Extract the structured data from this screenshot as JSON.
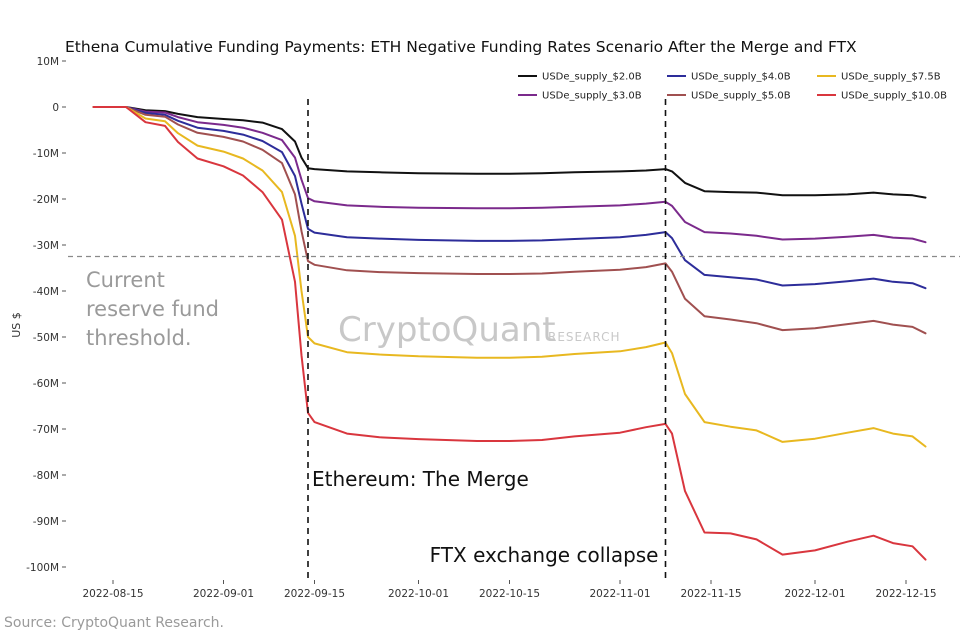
{
  "chart_data": {
    "type": "line",
    "title": "Ethena Cumulative Funding Payments: ETH Negative Funding Rates Scenario After the Merge and FTX",
    "ylabel": "US $",
    "xlabel": "",
    "ylim": [
      -100,
      10
    ],
    "y_ticks": [
      {
        "value": 10,
        "label": "10M"
      },
      {
        "value": 0,
        "label": "0"
      },
      {
        "value": -10,
        "label": "-10M"
      },
      {
        "value": -20,
        "label": "-20M"
      },
      {
        "value": -30,
        "label": "-30M"
      },
      {
        "value": -40,
        "label": "-40M"
      },
      {
        "value": -50,
        "label": "-50M"
      },
      {
        "value": -60,
        "label": "-60M"
      },
      {
        "value": -70,
        "label": "-70M"
      },
      {
        "value": -80,
        "label": "-80M"
      },
      {
        "value": -90,
        "label": "-90M"
      },
      {
        "value": -100,
        "label": "-100M"
      }
    ],
    "x_ticks": [
      "2022-08-15",
      "2022-09-01",
      "2022-09-15",
      "2022-10-01",
      "2022-10-15",
      "2022-11-01",
      "2022-11-15",
      "2022-12-01",
      "2022-12-15"
    ],
    "x": [
      "2022-08-12",
      "2022-08-15",
      "2022-08-17",
      "2022-08-20",
      "2022-08-23",
      "2022-08-25",
      "2022-08-28",
      "2022-09-01",
      "2022-09-04",
      "2022-09-07",
      "2022-09-10",
      "2022-09-12",
      "2022-09-13",
      "2022-09-14",
      "2022-09-15",
      "2022-09-20",
      "2022-09-25",
      "2022-10-01",
      "2022-10-10",
      "2022-10-15",
      "2022-10-20",
      "2022-10-25",
      "2022-11-01",
      "2022-11-05",
      "2022-11-08",
      "2022-11-09",
      "2022-11-11",
      "2022-11-14",
      "2022-11-18",
      "2022-11-22",
      "2022-11-26",
      "2022-12-01",
      "2022-12-06",
      "2022-12-10",
      "2022-12-13",
      "2022-12-16",
      "2022-12-18"
    ],
    "series": [
      {
        "name": "USDe_supply_$2.0B",
        "color": "#111111",
        "values": [
          0,
          0,
          0,
          -0.7,
          -0.9,
          -1.5,
          -2.2,
          -2.6,
          -2.9,
          -3.4,
          -4.8,
          -7.5,
          -11,
          -13.3,
          -13.5,
          -14,
          -14.2,
          -14.4,
          -14.5,
          -14.5,
          -14.4,
          -14.2,
          -14,
          -13.8,
          -13.5,
          -14,
          -16.5,
          -18.3,
          -18.5,
          -18.6,
          -19.2,
          -19.2,
          -19,
          -18.6,
          -19,
          -19.2,
          -19.7
        ]
      },
      {
        "name": "USDe_supply_$3.0B",
        "color": "#7b2a8c",
        "values": [
          0,
          0,
          0,
          -1.0,
          -1.2,
          -2.2,
          -3.3,
          -3.9,
          -4.5,
          -5.6,
          -7.2,
          -11,
          -15.8,
          -19.8,
          -20.5,
          -21.4,
          -21.7,
          -21.9,
          -22.0,
          -22.0,
          -21.9,
          -21.7,
          -21.4,
          -21.0,
          -20.6,
          -21.5,
          -25,
          -27.2,
          -27.5,
          -28,
          -28.8,
          -28.6,
          -28.2,
          -27.8,
          -28.4,
          -28.6,
          -29.4
        ]
      },
      {
        "name": "USDe_supply_$4.0B",
        "color": "#2d2d9a",
        "values": [
          0,
          0,
          0,
          -1.3,
          -1.7,
          -3.0,
          -4.5,
          -5.2,
          -6.0,
          -7.4,
          -9.8,
          -15,
          -21,
          -26.5,
          -27.3,
          -28.3,
          -28.6,
          -28.9,
          -29.1,
          -29.1,
          -29.0,
          -28.7,
          -28.3,
          -27.8,
          -27.2,
          -28.5,
          -33.3,
          -36.5,
          -37,
          -37.5,
          -38.8,
          -38.5,
          -37.9,
          -37.3,
          -38,
          -38.3,
          -39.4
        ]
      },
      {
        "name": "USDe_supply_$5.0B",
        "color": "#a05050",
        "values": [
          0,
          0,
          0,
          -1.7,
          -2.1,
          -3.8,
          -5.6,
          -6.5,
          -7.5,
          -9.3,
          -12.2,
          -19,
          -27,
          -33.5,
          -34.3,
          -35.5,
          -35.9,
          -36.1,
          -36.3,
          -36.3,
          -36.2,
          -35.8,
          -35.4,
          -34.8,
          -34,
          -35.8,
          -41.7,
          -45.5,
          -46.2,
          -47,
          -48.5,
          -48.1,
          -47.2,
          -46.5,
          -47.3,
          -47.8,
          -49.2
        ]
      },
      {
        "name": "USDe_supply_$7.5B",
        "color": "#e8b820",
        "values": [
          0,
          0,
          0,
          -2.5,
          -3.1,
          -5.7,
          -8.4,
          -9.7,
          -11.2,
          -13.8,
          -18.5,
          -28,
          -40,
          -50,
          -51.4,
          -53.3,
          -53.8,
          -54.2,
          -54.5,
          -54.5,
          -54.3,
          -53.7,
          -53.1,
          -52.2,
          -51.2,
          -53.5,
          -62.4,
          -68.5,
          -69.5,
          -70.3,
          -72.8,
          -72.1,
          -70.8,
          -69.8,
          -71,
          -71.6,
          -73.8
        ]
      },
      {
        "name": "USDe_supply_$10.0B",
        "color": "#d9363e",
        "values": [
          0,
          0,
          0,
          -3.3,
          -4.1,
          -7.6,
          -11.2,
          -12.9,
          -14.9,
          -18.5,
          -24.5,
          -38,
          -54,
          -66.5,
          -68.5,
          -71,
          -71.8,
          -72.2,
          -72.6,
          -72.6,
          -72.4,
          -71.6,
          -70.8,
          -69.6,
          -68.9,
          -71,
          -83.5,
          -92.5,
          -92.7,
          -94,
          -97.3,
          -96.4,
          -94.5,
          -93.2,
          -94.8,
          -95.5,
          -98.4
        ]
      }
    ],
    "reference_lines": [
      {
        "type": "horizontal",
        "y": -32.5,
        "label": "Current reserve fund threshold."
      },
      {
        "type": "vertical",
        "x": "2022-09-14",
        "label": "Ethereum: The Merge"
      },
      {
        "type": "vertical",
        "x": "2022-11-08",
        "label": "FTX exchange collapse"
      }
    ],
    "legend_position": "top-right",
    "grid": false,
    "watermark": {
      "main": "CryptoQuant",
      "sub": "RESEARCH"
    },
    "source": "Source: CryptoQuant Research."
  }
}
